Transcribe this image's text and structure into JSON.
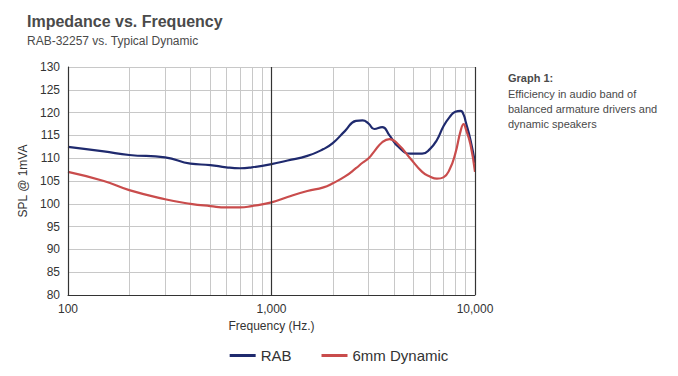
{
  "chart_data": {
    "type": "line",
    "title": "Impedance vs. Frequency",
    "subtitle": "RAB-32257 vs. Typical Dynamic",
    "x_label": "Frequency (Hz.)",
    "y_label": "SPL @ 1mVA",
    "annotation": {
      "title": "Graph 1:",
      "text": "Efficiency in audio band of balanced armature drivers and dynamic speakers"
    },
    "log": "x",
    "grid": true,
    "legend": "bottom",
    "xlim": [
      100,
      10000
    ],
    "xticks": [
      100,
      {
        "value": 1000,
        "label": "1,000"
      },
      {
        "value": 10000,
        "label": "10,000"
      }
    ],
    "ylim": [
      80,
      130
    ],
    "yticks": [
      80,
      85,
      90,
      95,
      100,
      105,
      110,
      115,
      120,
      125,
      130
    ],
    "x": [
      100,
      150,
      200,
      300,
      400,
      500,
      600,
      700,
      800,
      1000,
      1200,
      1500,
      1800,
      2000,
      2300,
      2600,
      2800,
      3000,
      3200,
      3500,
      3800,
      4200,
      4800,
      5500,
      6000,
      6500,
      7000,
      7500,
      8000,
      8500,
      8800,
      9000,
      9500,
      10000
    ],
    "series": [
      {
        "name": "RAB",
        "color": "#1f2a6e",
        "values": [
          112.5,
          111.5,
          110.7,
          110.2,
          108.8,
          108.5,
          108,
          107.8,
          108,
          108.7,
          109.5,
          110.5,
          112,
          113.3,
          116,
          118.2,
          118.3,
          117.6,
          116.4,
          116.8,
          115,
          112.5,
          111,
          111,
          112,
          114,
          117,
          119,
          120.2,
          120.4,
          119.5,
          118,
          114,
          109
        ]
      },
      {
        "name": "6mm Dynamic",
        "color": "#c94c4c",
        "values": [
          107,
          105,
          103,
          101,
          100,
          99.5,
          99.2,
          99.2,
          99.5,
          100.3,
          101.5,
          102.8,
          103.6,
          104.5,
          106,
          107.8,
          109,
          110,
          111.5,
          113.5,
          114.2,
          113,
          110,
          107,
          106,
          105.5,
          105.8,
          107.5,
          111,
          116,
          117.5,
          116.5,
          113,
          107
        ]
      }
    ]
  }
}
